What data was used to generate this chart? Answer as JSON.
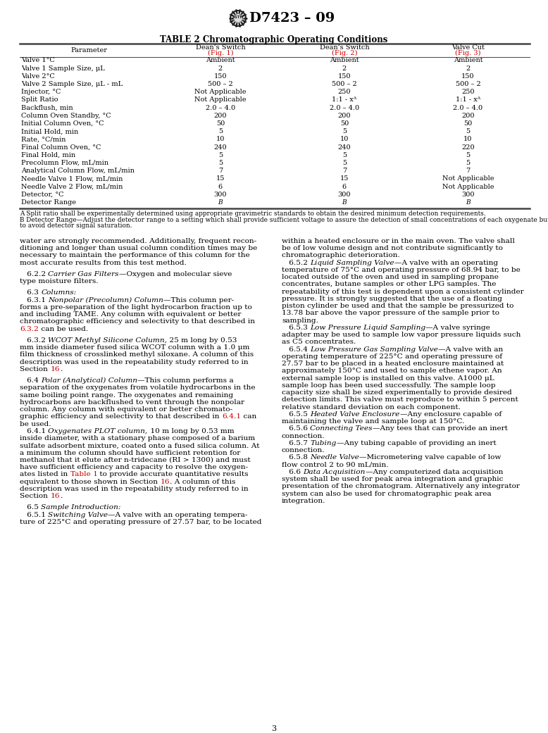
{
  "title_logo_text": "D7423 – 09",
  "table_title": "TABLE 2 Chromatographic Operating Conditions",
  "col_headers": [
    "Parameter",
    "Dean’s Switch (Fig. 1)",
    "Dean’s Switch (Fig. 2)",
    "Valve Cut (Fig. 3)"
  ],
  "table_rows": [
    [
      "Valve 1°C",
      "Ambient",
      "Ambient",
      "Ambient"
    ],
    [
      "Valve 1 Sample Size, μL",
      "2",
      "2",
      "2"
    ],
    [
      "Valve 2°C",
      "150",
      "150",
      "150"
    ],
    [
      "Valve 2 Sample Size, μL - mL",
      "500 – 2",
      "500 – 2",
      "500 – 2"
    ],
    [
      "Injector, °C",
      "Not Applicable",
      "250",
      "250"
    ],
    [
      "Split Ratio",
      "Not Applicable",
      "1:1 - xᴬ",
      "1:1 - xᴬ"
    ],
    [
      "Backflush, min",
      "2.0 – 4.0",
      "2.0 – 4.0",
      "2.0 – 4.0"
    ],
    [
      "Column Oven Standby, °C",
      "200",
      "200",
      "200"
    ],
    [
      "Initial Column Oven, °C",
      "50",
      "50",
      "50"
    ],
    [
      "Initial Hold, min",
      "5",
      "5",
      "5"
    ],
    [
      "Rate, °C/min",
      "10",
      "10",
      "10"
    ],
    [
      "Final Column Oven, °C",
      "240",
      "240",
      "220"
    ],
    [
      "Final Hold, min",
      "5",
      "5",
      "5"
    ],
    [
      "Precolumn Flow, mL/min",
      "5",
      "5",
      "5"
    ],
    [
      "Analytical Column Flow, mL/min",
      "7",
      "7",
      "7"
    ],
    [
      "Needle Valve 1 Flow, mL/min",
      "15",
      "15",
      "Not Applicable"
    ],
    [
      "Needle Valve 2 Flow, mL/min",
      "6",
      "6",
      "Not Applicable"
    ],
    [
      "Detector, °C",
      "300",
      "300",
      "300"
    ],
    [
      "Detector Range",
      "B",
      "B",
      "B"
    ]
  ],
  "footnote_a": "A Split ratio shall be experimentally determined using appropriate gravimetric standards to obtain the desired minimum detection requirements.",
  "footnote_b1": "B Detector Range—Adjust the detector range to a setting which shall provide sufficient voltage to assure the detection of small concentrations of each oxygenate but as",
  "footnote_b2": "to avoid detector signal saturation.",
  "left_col_lines": [
    [
      "n",
      "water are strongly recommended. Additionally, frequent recon-"
    ],
    [
      "n",
      "ditioning and longer than usual column condition times may be"
    ],
    [
      "n",
      "necessary to maintain the performance of this column for the"
    ],
    [
      "n",
      "most accurate results from this test method."
    ],
    [
      "gap",
      ""
    ],
    [
      "n",
      "   6.2.2 ",
      "i",
      "Carrier Gas Filters",
      "n",
      "—Oxygen and molecular sieve"
    ],
    [
      "n",
      "type moisture filters."
    ],
    [
      "gap",
      ""
    ],
    [
      "n",
      "   6.3 ",
      "i",
      "Columns:"
    ],
    [
      "n",
      "   6.3.1 ",
      "i",
      "Nonpolar (Precolumn) Column",
      "n",
      "—This column per-"
    ],
    [
      "n",
      "forms a pre-separation of the light hydrocarbon fraction up to"
    ],
    [
      "n",
      "and including TAME. Any column with equivalent or better"
    ],
    [
      "n",
      "chromatographic efficiency and selectivity to that described in"
    ],
    [
      "n",
      "",
      "r",
      "6.3.2",
      "n",
      " can be used."
    ],
    [
      "gap",
      ""
    ],
    [
      "n",
      "   6.3.2 ",
      "i",
      "WCOT Methyl Silicone Column,",
      "n",
      " 25 m long by 0.53"
    ],
    [
      "n",
      "mm inside diameter fused silica WCOT column with a 1.0 μm"
    ],
    [
      "n",
      "film thickness of crosslinked methyl siloxane. A column of this"
    ],
    [
      "n",
      "description was used in the repeatability study referred to in"
    ],
    [
      "n",
      "Section ",
      "r",
      "16",
      "n",
      "."
    ],
    [
      "gap",
      ""
    ],
    [
      "n",
      "   6.4 ",
      "i",
      "Polar (Analytical) Column",
      "n",
      "—This column performs a"
    ],
    [
      "n",
      "separation of the oxygenates from volatile hydrocarbons in the"
    ],
    [
      "n",
      "same boiling point range. The oxygenates and remaining"
    ],
    [
      "n",
      "hydrocarbons are backflushed to vent through the nonpolar"
    ],
    [
      "n",
      "column. Any column with equivalent or better chromato-"
    ],
    [
      "n",
      "graphic efficiency and selectivity to that described in ",
      "r",
      "6.4.1",
      "n",
      " can"
    ],
    [
      "n",
      "be used."
    ],
    [
      "n",
      "   6.4.1 ",
      "i",
      "Oxygenates PLOT column,",
      "n",
      " 10 m long by 0.53 mm"
    ],
    [
      "n",
      "inside diameter, with a stationary phase composed of a barium"
    ],
    [
      "n",
      "sulfate adsorbent mixture, coated onto a fused silica column. At"
    ],
    [
      "n",
      "a minimum the column should have sufficient retention for"
    ],
    [
      "n",
      "methanol that it elute after n-tridecane (RI > 1300) and must"
    ],
    [
      "n",
      "have sufficient efficiency and capacity to resolve the oxygen-"
    ],
    [
      "n",
      "ates listed in ",
      "r",
      "Table 1",
      "n",
      " to provide accurate quantitative results"
    ],
    [
      "n",
      "equivalent to those shown in Section ",
      "r",
      "16",
      "n",
      ". A column of this"
    ],
    [
      "n",
      "description was used in the repeatability study referred to in"
    ],
    [
      "n",
      "Section ",
      "r",
      "16",
      "n",
      "."
    ],
    [
      "gap",
      ""
    ],
    [
      "n",
      "   6.5 ",
      "i",
      "Sample Introduction:"
    ],
    [
      "n",
      "   6.5.1 ",
      "i",
      "Switching Valve",
      "n",
      "—A valve with an operating tempera-"
    ],
    [
      "n",
      "ture of 225°C and operating pressure of 27.57 bar, to be located"
    ]
  ],
  "right_col_lines": [
    [
      "n",
      "within a heated enclosure or in the main oven. The valve shall"
    ],
    [
      "n",
      "be of low volume design and not contribute significantly to"
    ],
    [
      "n",
      "chromatographic deterioration."
    ],
    [
      "n",
      "   6.5.2 ",
      "i",
      "Liquid Sampling Valve",
      "n",
      "—A valve with an operating"
    ],
    [
      "n",
      "temperature of 75°C and operating pressure of 68.94 bar, to be"
    ],
    [
      "n",
      "located outside of the oven and used in sampling propane"
    ],
    [
      "n",
      "concentrates, butane samples or other LPG samples. The"
    ],
    [
      "n",
      "repeatability of this test is dependent upon a consistent cylinder"
    ],
    [
      "n",
      "pressure. It is strongly suggested that the use of a floating"
    ],
    [
      "n",
      "piston cylinder be used and that the sample be pressurized to"
    ],
    [
      "n",
      "13.78 bar above the vapor pressure of the sample prior to"
    ],
    [
      "n",
      "sampling."
    ],
    [
      "n",
      "   6.5.3 ",
      "i",
      "Low Pressure Liquid Sampling",
      "n",
      "—A valve syringe"
    ],
    [
      "n",
      "adapter may be used to sample low vapor pressure liquids such"
    ],
    [
      "n",
      "as C5 concentrates."
    ],
    [
      "n",
      "   6.5.4 ",
      "i",
      "Low Pressure Gas Sampling Valve",
      "n",
      "—A valve with an"
    ],
    [
      "n",
      "operating temperature of 225°C and operating pressure of"
    ],
    [
      "n",
      "27.57 bar to be placed in a heated enclosure maintained at"
    ],
    [
      "n",
      "approximately 150°C and used to sample ethene vapor. An"
    ],
    [
      "n",
      "external sample loop is installed on this valve. A1000 μL"
    ],
    [
      "n",
      "sample loop has been used successfully. The sample loop"
    ],
    [
      "n",
      "capacity size shall be sized experimentally to provide desired"
    ],
    [
      "n",
      "detection limits. This valve must reproduce to within 5 percent"
    ],
    [
      "n",
      "relative standard deviation on each component."
    ],
    [
      "n",
      "   6.5.5 ",
      "i",
      "Heated Valve Enclosure",
      "n",
      "—Any enclosure capable of"
    ],
    [
      "n",
      "maintaining the valve and sample loop at 150°C."
    ],
    [
      "n",
      "   6.5.6 ",
      "i",
      "Connecting Tees",
      "n",
      "—Any tees that can provide an inert"
    ],
    [
      "n",
      "connection."
    ],
    [
      "n",
      "   6.5.7 ",
      "i",
      "Tubing",
      "n",
      "—Any tubing capable of providing an inert"
    ],
    [
      "n",
      "connection."
    ],
    [
      "n",
      "   6.5.8 ",
      "i",
      "Needle Valve",
      "n",
      "—Micrometering valve capable of low"
    ],
    [
      "n",
      "flow control 2 to 90 mL/min."
    ],
    [
      "n",
      "   6.6 ",
      "i",
      "Data Acquisition",
      "n",
      "—Any computerized data acquisition"
    ],
    [
      "n",
      "system shall be used for peak area integration and graphic"
    ],
    [
      "n",
      "presentation of the chromatogram. Alternatively any integrator"
    ],
    [
      "n",
      "system can also be used for chromatographic peak area"
    ],
    [
      "n",
      "integration."
    ]
  ],
  "page_num": "3",
  "bg": "#ffffff",
  "fg": "#000000",
  "red": "#cc0000",
  "dark": "#222222",
  "table_line": "#444444"
}
